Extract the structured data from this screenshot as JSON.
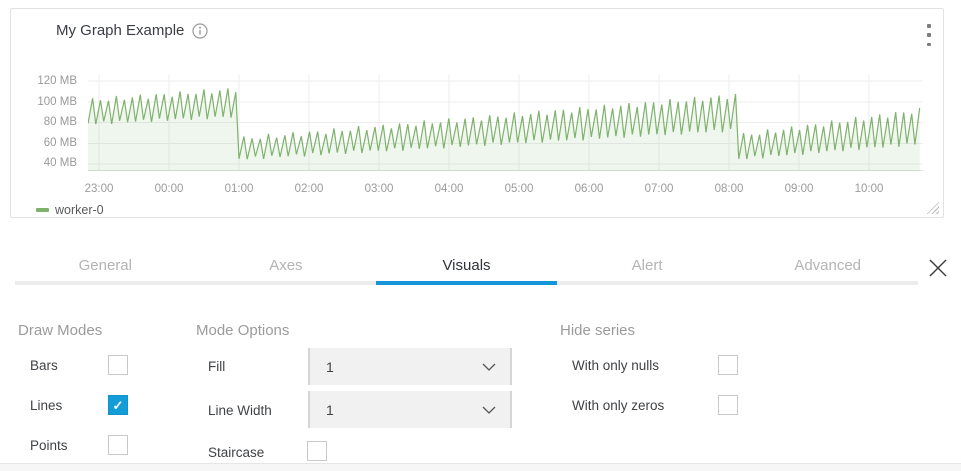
{
  "colors": {
    "accent_blue": "#129cd8",
    "tab_underline_blue": "#1596d8",
    "series_green": "#7eb26d",
    "grid_gray": "#ededed",
    "panel_border": "#e2e2e2"
  },
  "panel": {
    "title": "My Graph Example",
    "info_icon": "info-circle-icon",
    "menu_icon": "kebab-menu-icon",
    "resize_icon": "resize-handle",
    "legend": [
      {
        "label": "worker-0",
        "color": "#7eb26d"
      }
    ]
  },
  "chart_data": {
    "type": "line",
    "title": "My Graph Example",
    "unit": "MB",
    "grid": true,
    "legend_position": "bottom-left",
    "y_axis": {
      "ticks": [
        {
          "label": "120 MB",
          "value": 120
        },
        {
          "label": "100 MB",
          "value": 100
        },
        {
          "label": "80 MB",
          "value": 80
        },
        {
          "label": "60 MB",
          "value": 60
        },
        {
          "label": "40 MB",
          "value": 40
        }
      ],
      "range": [
        33,
        126
      ]
    },
    "x_axis": {
      "ticks": [
        "23:00",
        "00:00",
        "01:00",
        "02:00",
        "03:00",
        "04:00",
        "05:00",
        "06:00",
        "07:00",
        "08:00",
        "09:00",
        "10:00"
      ],
      "hours_per_gridline": 1,
      "range_hours": [
        -0.16,
        11.77
      ]
    },
    "series": [
      {
        "name": "worker-0",
        "color": "#7eb26d",
        "fill_opacity": 0.12,
        "pattern": "sawtooth",
        "period_minutes": 7,
        "segments": [
          {
            "from": -0.16,
            "to": 2.0,
            "min": [
              79,
              86
            ],
            "max": [
              101,
              112
            ]
          },
          {
            "from": 2.0,
            "to": 9.14,
            "min": [
              45,
              73
            ],
            "max": [
              64,
              106
            ]
          },
          {
            "from": 9.14,
            "to": 11.77,
            "min": [
              45,
              60
            ],
            "max": [
              67,
              92
            ]
          }
        ]
      }
    ]
  },
  "tabs": {
    "items": [
      {
        "label": "General",
        "active": false
      },
      {
        "label": "Axes",
        "active": false
      },
      {
        "label": "Visuals",
        "active": true
      },
      {
        "label": "Alert",
        "active": false
      },
      {
        "label": "Advanced",
        "active": false
      }
    ],
    "close_icon": "close-x-icon"
  },
  "form": {
    "draw_modes": {
      "heading": "Draw Modes",
      "items": [
        {
          "label": "Bars",
          "checked": false
        },
        {
          "label": "Lines",
          "checked": true
        },
        {
          "label": "Points",
          "checked": false
        }
      ]
    },
    "mode_options": {
      "heading": "Mode Options",
      "fill": {
        "label": "Fill",
        "value": "1"
      },
      "line_width": {
        "label": "Line Width",
        "value": "1"
      },
      "staircase": {
        "label": "Staircase",
        "checked": false
      }
    },
    "hide_series": {
      "heading": "Hide series",
      "items": [
        {
          "label": "With only nulls",
          "checked": false
        },
        {
          "label": "With only zeros",
          "checked": false
        }
      ]
    }
  }
}
